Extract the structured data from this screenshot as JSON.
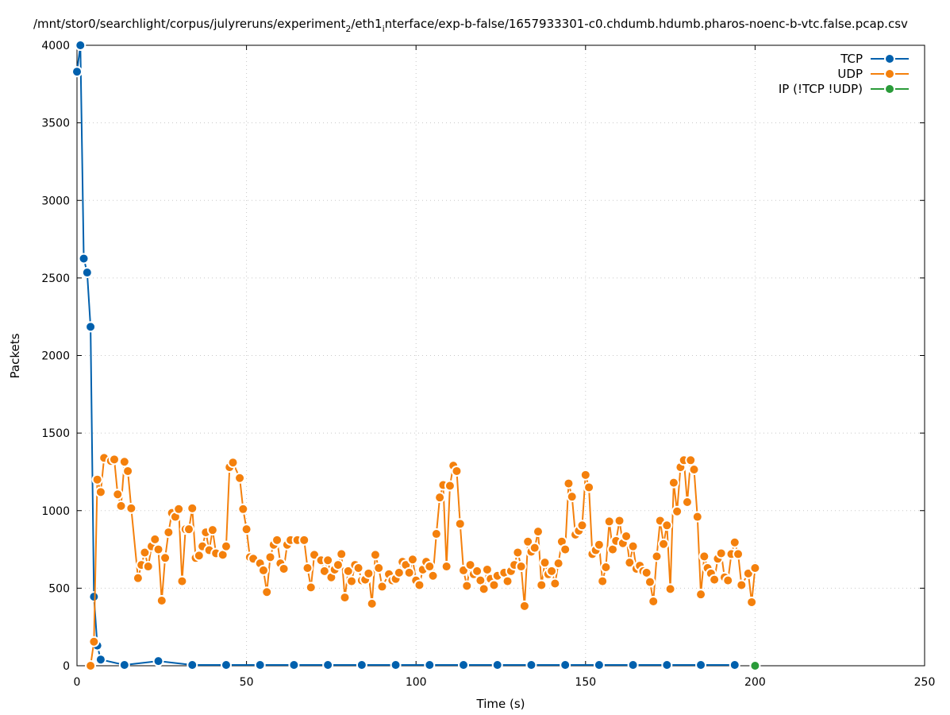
{
  "chart_data": {
    "type": "line",
    "title": "/mnt/stor0/searchlight/corpus/julyreruns/experiment",
    "title_sub1": "2",
    "title_mid": "/eth1",
    "title_sub2": "i",
    "title_end": "nterface/exp-b-false/1657933301-c0.chdumb.hdumb.pharos-noenc-b-vtc.false.pcap.csv",
    "xlabel": "Time (s)",
    "ylabel": "Packets",
    "xlim": [
      0,
      250
    ],
    "ylim": [
      0,
      4000
    ],
    "x_ticks": [
      "0",
      "50",
      "100",
      "150",
      "200",
      "250"
    ],
    "y_ticks": [
      "0",
      "500",
      "1000",
      "1500",
      "2000",
      "2500",
      "3000",
      "3500",
      "4000"
    ],
    "grid": true,
    "legend_position": "top-right",
    "series": [
      {
        "name": "TCP",
        "color": "#0060ad",
        "points": [
          [
            0,
            3830
          ],
          [
            1,
            4000
          ],
          [
            2,
            2625
          ],
          [
            3,
            2535
          ],
          [
            4,
            2185
          ],
          [
            5,
            445
          ],
          [
            6,
            130
          ],
          [
            7,
            40
          ],
          [
            14,
            5
          ],
          [
            24,
            30
          ],
          [
            34,
            5
          ],
          [
            44,
            5
          ],
          [
            54,
            5
          ],
          [
            64,
            5
          ],
          [
            74,
            5
          ],
          [
            84,
            5
          ],
          [
            94,
            5
          ],
          [
            104,
            5
          ],
          [
            114,
            5
          ],
          [
            124,
            5
          ],
          [
            134,
            5
          ],
          [
            144,
            5
          ],
          [
            154,
            5
          ],
          [
            164,
            5
          ],
          [
            174,
            5
          ],
          [
            184,
            5
          ],
          [
            194,
            5
          ]
        ]
      },
      {
        "name": "UDP",
        "color": "#f4800c",
        "points": [
          [
            4,
            0
          ],
          [
            5,
            155
          ],
          [
            6,
            1200
          ],
          [
            7,
            1120
          ],
          [
            8,
            1340
          ],
          [
            10,
            1320
          ],
          [
            11,
            1330
          ],
          [
            12,
            1105
          ],
          [
            13,
            1030
          ],
          [
            14,
            1315
          ],
          [
            15,
            1255
          ],
          [
            16,
            1015
          ],
          [
            18,
            565
          ],
          [
            19,
            650
          ],
          [
            20,
            730
          ],
          [
            21,
            640
          ],
          [
            22,
            770
          ],
          [
            23,
            815
          ],
          [
            24,
            750
          ],
          [
            25,
            420
          ],
          [
            26,
            695
          ],
          [
            27,
            860
          ],
          [
            28,
            985
          ],
          [
            29,
            960
          ],
          [
            30,
            1010
          ],
          [
            31,
            545
          ],
          [
            32,
            880
          ],
          [
            33,
            880
          ],
          [
            34,
            1015
          ],
          [
            35,
            695
          ],
          [
            36,
            710
          ],
          [
            37,
            770
          ],
          [
            38,
            860
          ],
          [
            39,
            745
          ],
          [
            40,
            875
          ],
          [
            41,
            725
          ],
          [
            43,
            715
          ],
          [
            44,
            770
          ],
          [
            45,
            1280
          ],
          [
            46,
            1310
          ],
          [
            48,
            1210
          ],
          [
            49,
            1010
          ],
          [
            50,
            880
          ],
          [
            51,
            700
          ],
          [
            52,
            690
          ],
          [
            54,
            660
          ],
          [
            55,
            615
          ],
          [
            56,
            475
          ],
          [
            57,
            700
          ],
          [
            58,
            780
          ],
          [
            59,
            810
          ],
          [
            60,
            660
          ],
          [
            61,
            625
          ],
          [
            62,
            780
          ],
          [
            63,
            810
          ],
          [
            65,
            810
          ],
          [
            67,
            810
          ],
          [
            68,
            630
          ],
          [
            69,
            505
          ],
          [
            70,
            715
          ],
          [
            72,
            680
          ],
          [
            73,
            610
          ],
          [
            74,
            680
          ],
          [
            75,
            570
          ],
          [
            76,
            620
          ],
          [
            77,
            650
          ],
          [
            78,
            720
          ],
          [
            79,
            440
          ],
          [
            80,
            610
          ],
          [
            81,
            545
          ],
          [
            82,
            650
          ],
          [
            83,
            630
          ],
          [
            84,
            550
          ],
          [
            85,
            555
          ],
          [
            86,
            595
          ],
          [
            87,
            400
          ],
          [
            88,
            715
          ],
          [
            89,
            630
          ],
          [
            90,
            510
          ],
          [
            92,
            590
          ],
          [
            93,
            550
          ],
          [
            94,
            560
          ],
          [
            95,
            600
          ],
          [
            96,
            670
          ],
          [
            97,
            650
          ],
          [
            98,
            600
          ],
          [
            99,
            685
          ],
          [
            100,
            550
          ],
          [
            101,
            520
          ],
          [
            102,
            620
          ],
          [
            103,
            670
          ],
          [
            104,
            640
          ],
          [
            105,
            580
          ],
          [
            106,
            850
          ],
          [
            107,
            1085
          ],
          [
            108,
            1165
          ],
          [
            109,
            640
          ],
          [
            110,
            1160
          ],
          [
            111,
            1290
          ],
          [
            112,
            1255
          ],
          [
            113,
            915
          ],
          [
            114,
            615
          ],
          [
            115,
            515
          ],
          [
            116,
            650
          ],
          [
            117,
            590
          ],
          [
            118,
            610
          ],
          [
            119,
            550
          ],
          [
            120,
            495
          ],
          [
            121,
            620
          ],
          [
            122,
            560
          ],
          [
            123,
            520
          ],
          [
            124,
            580
          ],
          [
            126,
            600
          ],
          [
            127,
            545
          ],
          [
            128,
            610
          ],
          [
            129,
            650
          ],
          [
            130,
            730
          ],
          [
            131,
            640
          ],
          [
            132,
            385
          ],
          [
            133,
            800
          ],
          [
            134,
            735
          ],
          [
            135,
            760
          ],
          [
            136,
            865
          ],
          [
            137,
            520
          ],
          [
            138,
            665
          ],
          [
            139,
            590
          ],
          [
            140,
            610
          ],
          [
            141,
            530
          ],
          [
            142,
            660
          ],
          [
            143,
            800
          ],
          [
            144,
            750
          ],
          [
            145,
            1175
          ],
          [
            146,
            1090
          ],
          [
            147,
            845
          ],
          [
            148,
            870
          ],
          [
            149,
            905
          ],
          [
            150,
            1230
          ],
          [
            151,
            1150
          ],
          [
            152,
            720
          ],
          [
            153,
            745
          ],
          [
            154,
            780
          ],
          [
            155,
            545
          ],
          [
            156,
            635
          ],
          [
            157,
            930
          ],
          [
            158,
            750
          ],
          [
            159,
            805
          ],
          [
            160,
            935
          ],
          [
            161,
            790
          ],
          [
            162,
            835
          ],
          [
            163,
            665
          ],
          [
            164,
            770
          ],
          [
            165,
            625
          ],
          [
            166,
            645
          ],
          [
            167,
            610
          ],
          [
            168,
            600
          ],
          [
            169,
            540
          ],
          [
            170,
            415
          ],
          [
            171,
            705
          ],
          [
            172,
            935
          ],
          [
            173,
            785
          ],
          [
            174,
            905
          ],
          [
            175,
            495
          ],
          [
            176,
            1180
          ],
          [
            177,
            995
          ],
          [
            178,
            1280
          ],
          [
            179,
            1325
          ],
          [
            180,
            1055
          ],
          [
            181,
            1325
          ],
          [
            182,
            1265
          ],
          [
            183,
            960
          ],
          [
            184,
            460
          ],
          [
            185,
            705
          ],
          [
            186,
            630
          ],
          [
            187,
            595
          ],
          [
            188,
            555
          ],
          [
            189,
            690
          ],
          [
            190,
            725
          ],
          [
            191,
            570
          ],
          [
            192,
            550
          ],
          [
            193,
            720
          ],
          [
            194,
            795
          ],
          [
            195,
            720
          ],
          [
            196,
            520
          ],
          [
            198,
            595
          ],
          [
            199,
            410
          ],
          [
            200,
            630
          ]
        ]
      },
      {
        "name": "IP (!TCP  !UDP)",
        "color": "#2a9b39",
        "points": [
          [
            200,
            0
          ]
        ]
      }
    ]
  }
}
